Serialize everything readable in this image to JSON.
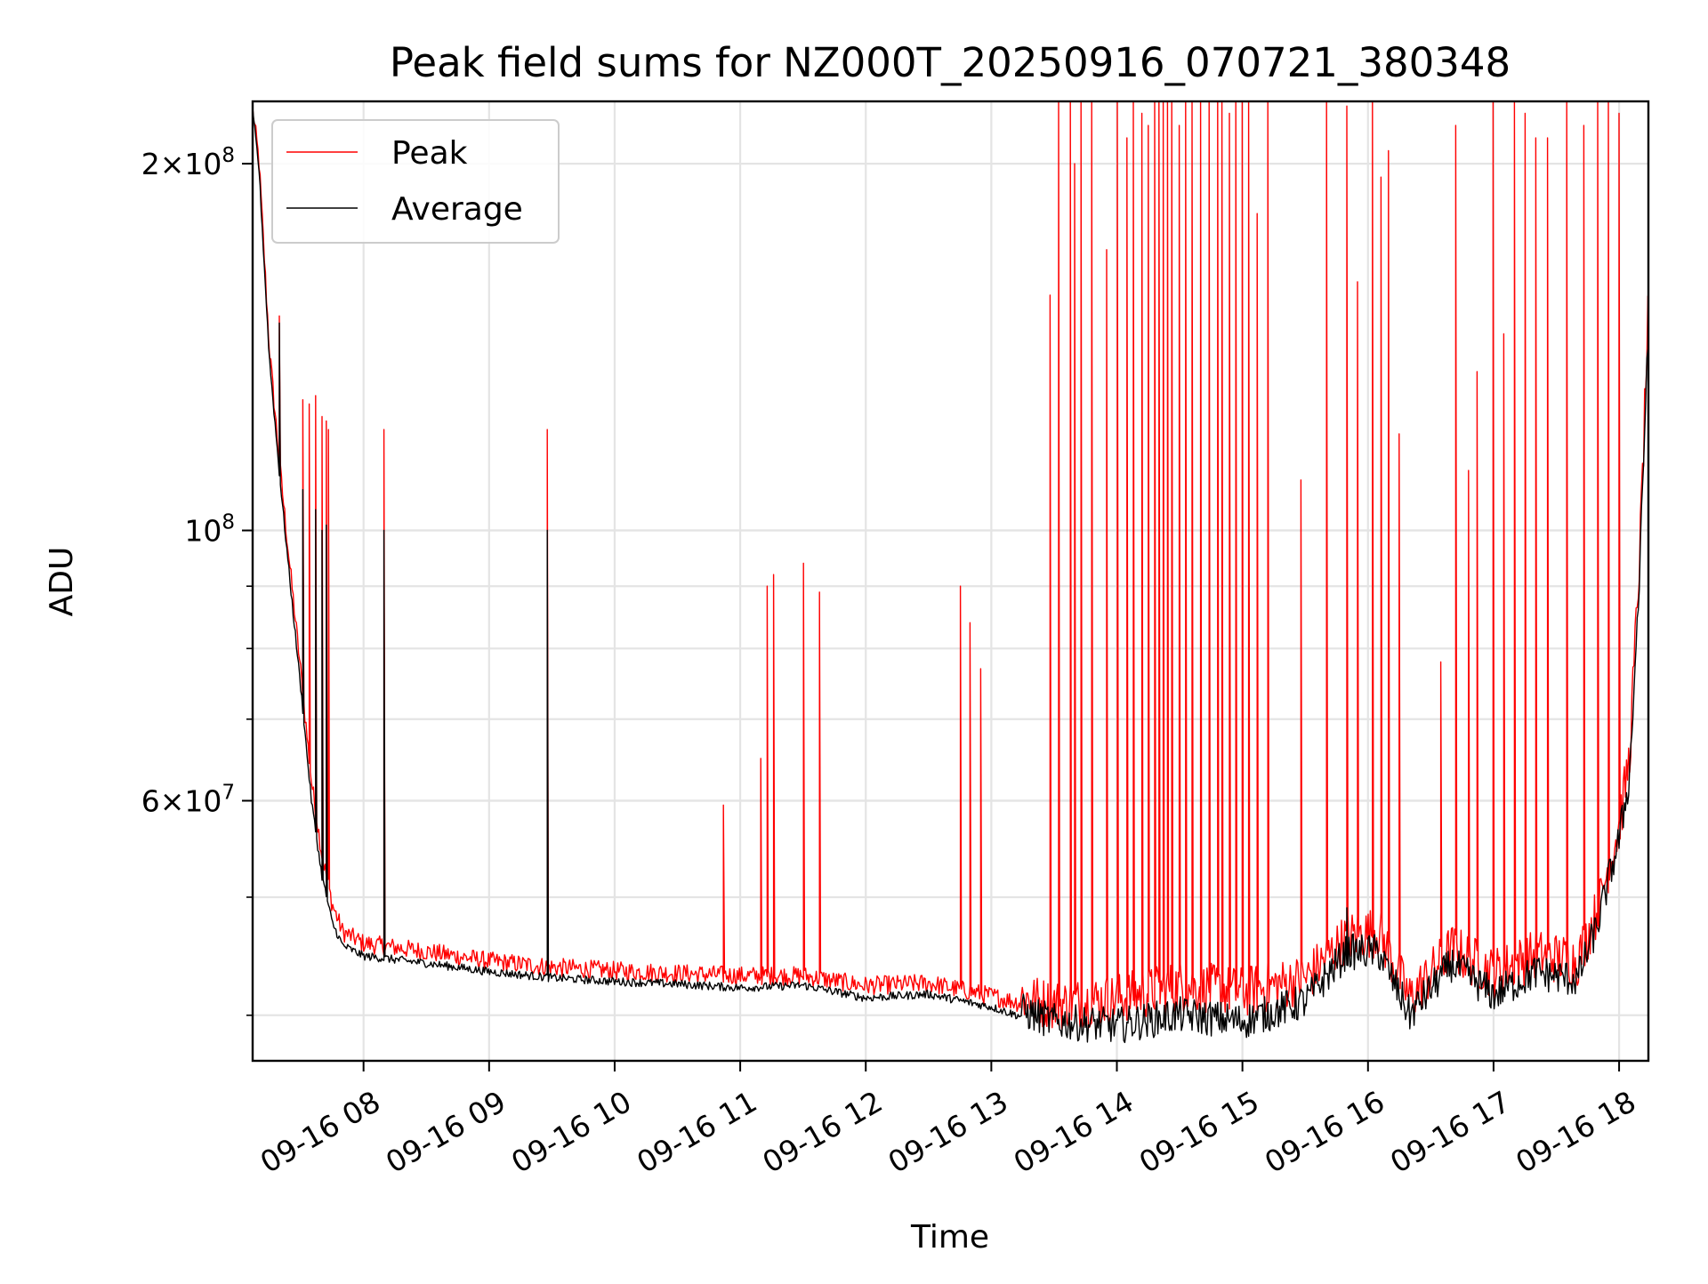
{
  "chart_data": {
    "type": "line",
    "title": "Peak field sums for NZ000T_20250916_070721_380348",
    "xlabel": "Time",
    "ylabel": "ADU",
    "y_scale": "log",
    "ylim": [
      36700000,
      225000000
    ],
    "xlim": [
      "2025-09-16T07:07",
      "2025-09-16T18:14"
    ],
    "grid": true,
    "legend_position": "upper-left",
    "x_ticks": [
      {
        "t": "2025-09-16T08:00",
        "label": "09-16 08"
      },
      {
        "t": "2025-09-16T09:00",
        "label": "09-16 09"
      },
      {
        "t": "2025-09-16T10:00",
        "label": "09-16 10"
      },
      {
        "t": "2025-09-16T11:00",
        "label": "09-16 11"
      },
      {
        "t": "2025-09-16T12:00",
        "label": "09-16 12"
      },
      {
        "t": "2025-09-16T13:00",
        "label": "09-16 13"
      },
      {
        "t": "2025-09-16T14:00",
        "label": "09-16 14"
      },
      {
        "t": "2025-09-16T15:00",
        "label": "09-16 15"
      },
      {
        "t": "2025-09-16T16:00",
        "label": "09-16 16"
      },
      {
        "t": "2025-09-16T17:00",
        "label": "09-16 17"
      },
      {
        "t": "2025-09-16T18:00",
        "label": "09-16 18"
      }
    ],
    "y_major_ticks": [
      {
        "value": 60000000,
        "label_mantissa": "6",
        "label_op": "×",
        "label_base": "10",
        "label_exp": "7"
      },
      {
        "value": 100000000,
        "label_mantissa": "",
        "label_op": "",
        "label_base": "10",
        "label_exp": "8"
      },
      {
        "value": 200000000,
        "label_mantissa": "2",
        "label_op": "×",
        "label_base": "10",
        "label_exp": "8"
      }
    ],
    "y_minor_gridlines": [
      40000000,
      50000000,
      60000000,
      70000000,
      80000000,
      90000000,
      100000000,
      200000000
    ],
    "series": [
      {
        "name": "Peak",
        "color": "#ff0000",
        "baseline": [
          [
            "2025-09-16T07:07",
            220000000
          ],
          [
            "2025-09-16T07:10",
            200000000
          ],
          [
            "2025-09-16T07:15",
            140000000
          ],
          [
            "2025-09-16T07:20",
            112000000
          ],
          [
            "2025-09-16T07:25",
            92000000
          ],
          [
            "2025-09-16T07:30",
            76000000
          ],
          [
            "2025-09-16T07:35",
            62000000
          ],
          [
            "2025-09-16T07:40",
            54000000
          ],
          [
            "2025-09-16T07:45",
            49000000
          ],
          [
            "2025-09-16T07:50",
            46500000
          ],
          [
            "2025-09-16T08:00",
            45500000
          ],
          [
            "2025-09-16T08:30",
            44800000
          ],
          [
            "2025-09-16T09:00",
            44000000
          ],
          [
            "2025-09-16T09:30",
            43500000
          ],
          [
            "2025-09-16T10:00",
            43200000
          ],
          [
            "2025-09-16T10:30",
            43000000
          ],
          [
            "2025-09-16T11:00",
            42800000
          ],
          [
            "2025-09-16T11:30",
            42800000
          ],
          [
            "2025-09-16T12:00",
            42000000
          ],
          [
            "2025-09-16T12:30",
            42200000
          ],
          [
            "2025-09-16T13:00",
            41200000
          ],
          [
            "2025-09-16T13:30",
            40000000
          ],
          [
            "2025-09-16T14:00",
            40500000
          ],
          [
            "2025-09-16T14:30",
            41500000
          ],
          [
            "2025-09-16T15:00",
            41000000
          ],
          [
            "2025-09-16T15:30",
            42000000
          ],
          [
            "2025-09-16T15:50",
            45500000
          ],
          [
            "2025-09-16T16:05",
            46000000
          ],
          [
            "2025-09-16T16:20",
            40500000
          ],
          [
            "2025-09-16T16:40",
            44500000
          ],
          [
            "2025-09-16T17:00",
            42500000
          ],
          [
            "2025-09-16T17:20",
            44000000
          ],
          [
            "2025-09-16T17:40",
            43500000
          ],
          [
            "2025-09-16T17:50",
            48000000
          ],
          [
            "2025-09-16T17:55",
            52000000
          ],
          [
            "2025-09-16T18:00",
            56000000
          ],
          [
            "2025-09-16T18:05",
            64000000
          ],
          [
            "2025-09-16T18:10",
            95000000
          ],
          [
            "2025-09-16T18:14",
            150000000
          ]
        ],
        "spikes": [
          [
            "2025-09-16T07:20",
            150000000
          ],
          [
            "2025-09-16T07:31",
            128000000
          ],
          [
            "2025-09-16T07:34",
            127000000
          ],
          [
            "2025-09-16T07:37",
            129000000
          ],
          [
            "2025-09-16T07:40",
            124000000
          ],
          [
            "2025-09-16T07:42",
            123000000
          ],
          [
            "2025-09-16T07:43",
            121000000
          ],
          [
            "2025-09-16T08:10",
            121000000
          ],
          [
            "2025-09-16T09:28",
            121000000
          ],
          [
            "2025-09-16T10:52",
            59500000
          ],
          [
            "2025-09-16T11:10",
            65000000
          ],
          [
            "2025-09-16T11:13",
            90000000
          ],
          [
            "2025-09-16T11:16",
            92000000
          ],
          [
            "2025-09-16T11:30",
            94000000
          ],
          [
            "2025-09-16T11:38",
            89000000
          ],
          [
            "2025-09-16T12:45",
            90000000
          ],
          [
            "2025-09-16T12:50",
            84000000
          ],
          [
            "2025-09-16T12:55",
            77000000
          ],
          [
            "2025-09-16T13:28",
            156000000
          ],
          [
            "2025-09-16T13:32",
            225000000
          ],
          [
            "2025-09-16T13:38",
            225000000
          ],
          [
            "2025-09-16T13:40",
            200000000
          ],
          [
            "2025-09-16T13:43",
            225000000
          ],
          [
            "2025-09-16T13:48",
            225000000
          ],
          [
            "2025-09-16T13:55",
            170000000
          ],
          [
            "2025-09-16T14:00",
            225000000
          ],
          [
            "2025-09-16T14:05",
            210000000
          ],
          [
            "2025-09-16T14:08",
            225000000
          ],
          [
            "2025-09-16T14:12",
            220000000
          ],
          [
            "2025-09-16T14:15",
            215000000
          ],
          [
            "2025-09-16T14:18",
            225000000
          ],
          [
            "2025-09-16T14:20",
            225000000
          ],
          [
            "2025-09-16T14:22",
            225000000
          ],
          [
            "2025-09-16T14:24",
            225000000
          ],
          [
            "2025-09-16T14:26",
            225000000
          ],
          [
            "2025-09-16T14:30",
            215000000
          ],
          [
            "2025-09-16T14:33",
            225000000
          ],
          [
            "2025-09-16T14:36",
            225000000
          ],
          [
            "2025-09-16T14:40",
            225000000
          ],
          [
            "2025-09-16T14:44",
            225000000
          ],
          [
            "2025-09-16T14:48",
            225000000
          ],
          [
            "2025-09-16T14:50",
            225000000
          ],
          [
            "2025-09-16T14:54",
            220000000
          ],
          [
            "2025-09-16T14:57",
            225000000
          ],
          [
            "2025-09-16T15:00",
            225000000
          ],
          [
            "2025-09-16T15:03",
            225000000
          ],
          [
            "2025-09-16T15:07",
            182000000
          ],
          [
            "2025-09-16T15:12",
            225000000
          ],
          [
            "2025-09-16T15:28",
            110000000
          ],
          [
            "2025-09-16T15:40",
            225000000
          ],
          [
            "2025-09-16T15:50",
            223000000
          ],
          [
            "2025-09-16T15:55",
            160000000
          ],
          [
            "2025-09-16T16:02",
            225000000
          ],
          [
            "2025-09-16T16:06",
            195000000
          ],
          [
            "2025-09-16T16:10",
            205000000
          ],
          [
            "2025-09-16T16:15",
            120000000
          ],
          [
            "2025-09-16T16:35",
            78000000
          ],
          [
            "2025-09-16T16:42",
            215000000
          ],
          [
            "2025-09-16T16:48",
            112000000
          ],
          [
            "2025-09-16T16:52",
            135000000
          ],
          [
            "2025-09-16T17:00",
            225000000
          ],
          [
            "2025-09-16T17:05",
            145000000
          ],
          [
            "2025-09-16T17:10",
            225000000
          ],
          [
            "2025-09-16T17:15",
            220000000
          ],
          [
            "2025-09-16T17:20",
            210000000
          ],
          [
            "2025-09-16T17:26",
            210000000
          ],
          [
            "2025-09-16T17:35",
            225000000
          ],
          [
            "2025-09-16T17:43",
            215000000
          ],
          [
            "2025-09-16T17:50",
            225000000
          ],
          [
            "2025-09-16T17:55",
            225000000
          ],
          [
            "2025-09-16T18:00",
            220000000
          ]
        ]
      },
      {
        "name": "Average",
        "color": "#000000",
        "baseline": [
          [
            "2025-09-16T07:07",
            220000000
          ],
          [
            "2025-09-16T07:10",
            198000000
          ],
          [
            "2025-09-16T07:15",
            138000000
          ],
          [
            "2025-09-16T07:20",
            110000000
          ],
          [
            "2025-09-16T07:25",
            90000000
          ],
          [
            "2025-09-16T07:30",
            74000000
          ],
          [
            "2025-09-16T07:35",
            60000000
          ],
          [
            "2025-09-16T07:40",
            52000000
          ],
          [
            "2025-09-16T07:45",
            47500000
          ],
          [
            "2025-09-16T07:50",
            45500000
          ],
          [
            "2025-09-16T08:00",
            44600000
          ],
          [
            "2025-09-16T08:30",
            44000000
          ],
          [
            "2025-09-16T09:00",
            43300000
          ],
          [
            "2025-09-16T09:30",
            42800000
          ],
          [
            "2025-09-16T10:00",
            42500000
          ],
          [
            "2025-09-16T10:30",
            42300000
          ],
          [
            "2025-09-16T11:00",
            42000000
          ],
          [
            "2025-09-16T11:30",
            42200000
          ],
          [
            "2025-09-16T12:00",
            41200000
          ],
          [
            "2025-09-16T12:30",
            41500000
          ],
          [
            "2025-09-16T13:00",
            40500000
          ],
          [
            "2025-09-16T13:30",
            39000000
          ],
          [
            "2025-09-16T14:00",
            38700000
          ],
          [
            "2025-09-16T14:30",
            39500000
          ],
          [
            "2025-09-16T15:00",
            39000000
          ],
          [
            "2025-09-16T15:30",
            40500000
          ],
          [
            "2025-09-16T15:50",
            44500000
          ],
          [
            "2025-09-16T16:05",
            44500000
          ],
          [
            "2025-09-16T16:20",
            39500000
          ],
          [
            "2025-09-16T16:40",
            43500000
          ],
          [
            "2025-09-16T17:00",
            41000000
          ],
          [
            "2025-09-16T17:20",
            42800000
          ],
          [
            "2025-09-16T17:40",
            42200000
          ],
          [
            "2025-09-16T17:50",
            47000000
          ],
          [
            "2025-09-16T17:55",
            51000000
          ],
          [
            "2025-09-16T18:00",
            55000000
          ],
          [
            "2025-09-16T18:05",
            62000000
          ],
          [
            "2025-09-16T18:10",
            92000000
          ],
          [
            "2025-09-16T18:14",
            148000000
          ]
        ],
        "spikes": [
          [
            "2025-09-16T07:20",
            148000000
          ],
          [
            "2025-09-16T07:31",
            108000000
          ],
          [
            "2025-09-16T07:37",
            104000000
          ],
          [
            "2025-09-16T07:40",
            100000000
          ],
          [
            "2025-09-16T07:42",
            101000000
          ],
          [
            "2025-09-16T08:10",
            100000000
          ],
          [
            "2025-09-16T09:28",
            100000000
          ],
          [
            "2025-09-16T15:50",
            49000000
          ]
        ]
      }
    ]
  }
}
